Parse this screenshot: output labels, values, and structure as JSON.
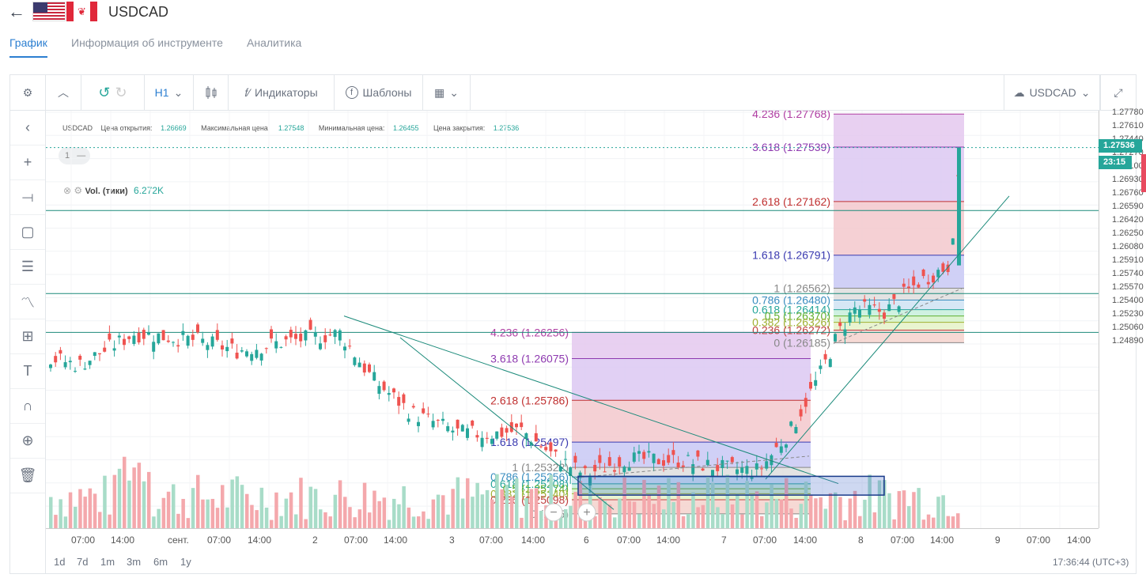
{
  "header": {
    "back": "←",
    "symbol": "USDCAD"
  },
  "tabs": [
    {
      "label": "График",
      "active": true
    },
    {
      "label": "Информация об инструменте"
    },
    {
      "label": "Аналитика"
    }
  ],
  "toolbar": {
    "interval": "H1",
    "indicators": "Индикаторы",
    "templates": "Шаблоны",
    "symbol": "USDCAD"
  },
  "ohlc": {
    "symbol": "USDCAD",
    "open_label": "Цена открытия:",
    "open": "1.26669",
    "high_label": "Максимальная цена:",
    "high": "1.27548",
    "low_label": "Минимальная цена:",
    "low": "1.26455",
    "close_label": "Цена закрытия:",
    "close": "1.27536"
  },
  "legend": {
    "pane": "1",
    "volume_label": "Vol. (тики)",
    "volume_value": "6.272K"
  },
  "price_axis": {
    "labels": [
      "1.27780",
      "1.27610",
      "1.27440",
      "1.27270",
      "1.27100",
      "1.26930",
      "1.26760",
      "1.26590",
      "1.26420",
      "1.26250",
      "1.26080",
      "1.25910",
      "1.25740",
      "1.25570",
      "1.25400",
      "1.25230",
      "1.25060",
      "1.24890"
    ],
    "last_price": "1.27536",
    "countdown": "23:15",
    "last_color": "#26a69a"
  },
  "time_axis": [
    "07:00",
    "14:00",
    "сент.",
    "07:00",
    "14:00",
    "2",
    "07:00",
    "14:00",
    "3",
    "07:00",
    "14:00",
    "6",
    "07:00",
    "14:00",
    "7",
    "07:00",
    "14:00",
    "8",
    "07:00",
    "14:00",
    "9",
    "07:00",
    "14:00"
  ],
  "fib1": {
    "levels": [
      "4.236 (1.27768)",
      "3.618 (1.27539)",
      "2.618 (1.27162)",
      "1.618 (1.26791)",
      "1 (1.26562)",
      "0.786 (1.26480)",
      "0.618 (1.26414)",
      "0.5 (1.26370)",
      "0.382 (1.26326)",
      "0.236 (1.26272)",
      "0 (1.26185)"
    ]
  },
  "fib2": {
    "levels": [
      "4.236 (1.26256)",
      "3.618 (1.26075)",
      "2.618 (1.25786)",
      "1.618 (1.25497)",
      "1 (1.25322)",
      "0.786 (1.25256)",
      "0.618 (1.25208)",
      "0.5 (1.25174)",
      "0.382 (1.25140)",
      "0.236 (1.25098)",
      "0 (1.25)"
    ]
  },
  "periods": [
    "1d",
    "7d",
    "1m",
    "3m",
    "6m",
    "1y"
  ],
  "clock": "17:36:44 (UTC+3)",
  "colors": {
    "up": "#26a69a",
    "down": "#ef5350",
    "accent": "#2c7fd1"
  }
}
